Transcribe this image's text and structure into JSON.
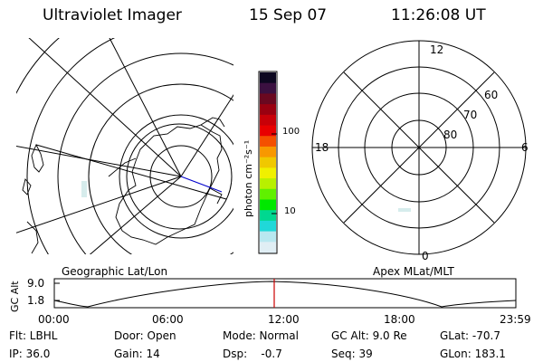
{
  "header": {
    "title": "Ultraviolet Imager",
    "date": "15 Sep 07",
    "time": "11:26:08 UT"
  },
  "colorbar": {
    "label": "photon cm⁻²s⁻¹",
    "ticks": [
      "100",
      "10"
    ],
    "colors": [
      "#0c0720",
      "#3a1040",
      "#6a0820",
      "#9a0010",
      "#c80008",
      "#e80000",
      "#f45000",
      "#f89800",
      "#f0c800",
      "#f0f000",
      "#b8f000",
      "#60f000",
      "#00e800",
      "#00d890",
      "#20d8d8",
      "#b8e8f0",
      "#e0eef4"
    ]
  },
  "maps": {
    "left_label": "Geographic Lat/Lon",
    "right_label": "Apex MLat/MLT",
    "mlt_labels": [
      "12",
      "18",
      "6",
      "0"
    ],
    "mlat_labels": [
      "60",
      "70",
      "80"
    ]
  },
  "altitude_plot": {
    "ylabel": "GC Alt",
    "y_ticks": [
      "9.0",
      "1.8"
    ],
    "x_ticks": [
      "00:00",
      "06:00",
      "12:00",
      "18:00",
      "23:59"
    ],
    "marker_color": "#cc0000"
  },
  "info": {
    "flt": "Flt: LBHL",
    "ip": "IP: 36.0",
    "door": "Door: Open",
    "gain": "Gain: 14",
    "mode": "Mode: Normal",
    "dsp": "Dsp:    -0.7",
    "gcalt": "GC Alt: 9.0 Re",
    "seq": "Seq: 39",
    "glat": "GLat: -70.7",
    "glon": "GLon: 183.1"
  }
}
